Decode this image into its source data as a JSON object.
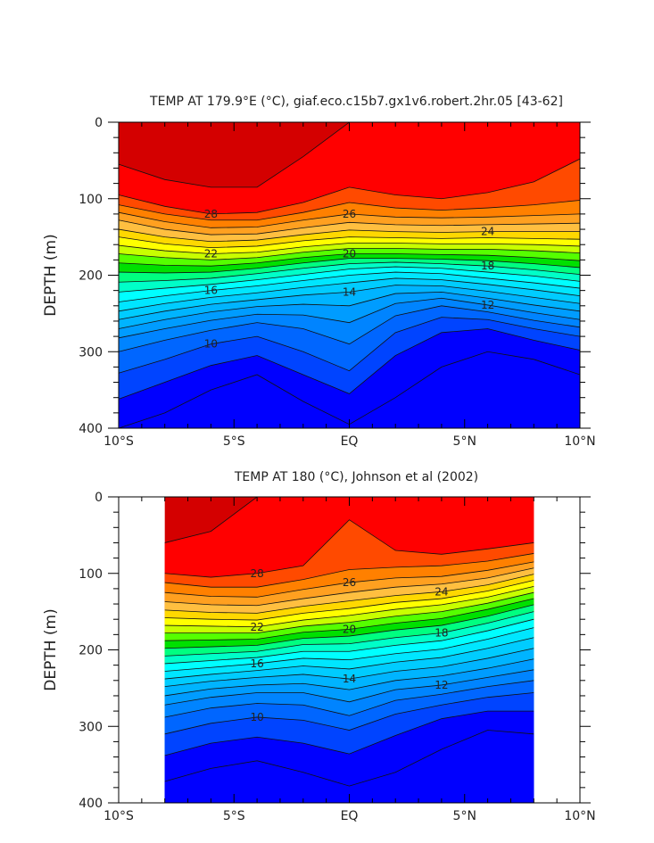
{
  "chart_data": [
    {
      "type": "heatmap",
      "title": "TEMP AT 179.9°E (°C), giaf.eco.c15b7.gx1v6.robert.2hr.05 [43-62]",
      "xlabel": "",
      "ylabel": "DEPTH (m)",
      "xlim": [
        -10,
        10
      ],
      "ylim": [
        400,
        0
      ],
      "x_ticks": [
        {
          "value": -10,
          "label": "10°S"
        },
        {
          "value": -5,
          "label": "5°S"
        },
        {
          "value": 0,
          "label": "EQ"
        },
        {
          "value": 5,
          "label": "5°N"
        },
        {
          "value": 10,
          "label": "10°N"
        }
      ],
      "y_ticks": [
        {
          "value": 0,
          "label": "0"
        },
        {
          "value": 100,
          "label": "100"
        },
        {
          "value": 200,
          "label": "200"
        },
        {
          "value": 300,
          "label": "300"
        },
        {
          "value": 400,
          "label": "400"
        }
      ],
      "data_x_range": [
        -10,
        10
      ],
      "contour_interval": 1,
      "levels": [
        29,
        28,
        27,
        26,
        25,
        24,
        23,
        22,
        21,
        20,
        19,
        18,
        17,
        16,
        15,
        14,
        13,
        12,
        11,
        10,
        9,
        8
      ],
      "contour_labels": [
        "28",
        "26",
        "24",
        "22",
        "20",
        "18",
        "16",
        "14",
        "12",
        "10"
      ],
      "x": [
        -10,
        -8,
        -6,
        -4,
        -2,
        0,
        2,
        4,
        6,
        8,
        10
      ],
      "isotherm_depths_m": {
        "29": [
          55,
          75,
          85,
          85,
          45,
          0,
          0,
          0,
          0,
          0,
          0
        ],
        "28": [
          95,
          110,
          120,
          118,
          105,
          85,
          95,
          100,
          92,
          78,
          48
        ],
        "27": [
          108,
          120,
          128,
          128,
          118,
          105,
          112,
          115,
          112,
          108,
          102
        ],
        "26": [
          118,
          130,
          138,
          137,
          128,
          120,
          124,
          125,
          124,
          122,
          120
        ],
        "25": [
          128,
          140,
          147,
          146,
          138,
          131,
          134,
          135,
          134,
          133,
          132
        ],
        "24": [
          140,
          150,
          156,
          154,
          147,
          141,
          143,
          144,
          143,
          143,
          143
        ],
        "23": [
          150,
          159,
          164,
          162,
          155,
          150,
          151,
          152,
          151,
          152,
          153
        ],
        "22": [
          161,
          168,
          172,
          170,
          163,
          158,
          158,
          159,
          159,
          160,
          162
        ],
        "21": [
          172,
          177,
          180,
          177,
          170,
          165,
          165,
          166,
          166,
          168,
          171
        ],
        "20": [
          184,
          187,
          188,
          184,
          177,
          172,
          172,
          173,
          174,
          177,
          181
        ],
        "19": [
          196,
          197,
          196,
          191,
          184,
          178,
          178,
          179,
          181,
          185,
          190
        ],
        "18": [
          209,
          207,
          204,
          198,
          191,
          185,
          183,
          185,
          188,
          193,
          199
        ],
        "17": [
          222,
          217,
          212,
          206,
          199,
          192,
          189,
          191,
          196,
          201,
          208
        ],
        "16": [
          235,
          227,
          220,
          214,
          207,
          200,
          196,
          198,
          204,
          210,
          217
        ],
        "15": [
          247,
          237,
          229,
          223,
          216,
          210,
          204,
          206,
          212,
          219,
          227
        ],
        "14": [
          258,
          247,
          238,
          232,
          226,
          222,
          213,
          214,
          221,
          229,
          237
        ],
        "13": [
          270,
          258,
          248,
          241,
          238,
          240,
          224,
          222,
          230,
          239,
          247
        ],
        "12": [
          282,
          270,
          259,
          251,
          252,
          262,
          237,
          230,
          239,
          249,
          258
        ],
        "11": [
          300,
          285,
          272,
          262,
          270,
          290,
          253,
          240,
          248,
          259,
          268
        ],
        "10": [
          328,
          310,
          290,
          280,
          300,
          325,
          275,
          255,
          258,
          270,
          280
        ],
        "9": [
          362,
          340,
          318,
          305,
          330,
          355,
          305,
          275,
          270,
          285,
          298
        ],
        "8": [
          400,
          380,
          350,
          330,
          365,
          395,
          360,
          320,
          300,
          310,
          330
        ]
      }
    },
    {
      "type": "heatmap",
      "title": "TEMP AT 180 (°C), Johnson et al (2002)",
      "xlabel": "",
      "ylabel": "DEPTH (m)",
      "xlim": [
        -10,
        10
      ],
      "ylim": [
        400,
        0
      ],
      "x_ticks": [
        {
          "value": -10,
          "label": "10°S"
        },
        {
          "value": -5,
          "label": "5°S"
        },
        {
          "value": 0,
          "label": "EQ"
        },
        {
          "value": 5,
          "label": "5°N"
        },
        {
          "value": 10,
          "label": "10°N"
        }
      ],
      "y_ticks": [
        {
          "value": 0,
          "label": "0"
        },
        {
          "value": 100,
          "label": "100"
        },
        {
          "value": 200,
          "label": "200"
        },
        {
          "value": 300,
          "label": "300"
        },
        {
          "value": 400,
          "label": "400"
        }
      ],
      "data_x_range": [
        -8,
        8
      ],
      "contour_interval": 1,
      "levels": [
        29,
        28,
        27,
        26,
        25,
        24,
        23,
        22,
        21,
        20,
        19,
        18,
        17,
        16,
        15,
        14,
        13,
        12,
        11,
        10,
        9,
        8
      ],
      "contour_labels": [
        "28",
        "26",
        "24",
        "22",
        "20",
        "18",
        "16",
        "14",
        "12",
        "10"
      ],
      "x": [
        -8,
        -6,
        -4,
        -2,
        0,
        2,
        4,
        6,
        8
      ],
      "isotherm_depths_m": {
        "29": [
          60,
          45,
          0,
          0,
          0,
          0,
          0,
          0,
          0
        ],
        "28": [
          100,
          105,
          100,
          90,
          30,
          70,
          75,
          68,
          60
        ],
        "27": [
          112,
          118,
          118,
          108,
          95,
          92,
          90,
          84,
          74
        ],
        "26": [
          125,
          130,
          131,
          121,
          112,
          106,
          104,
          96,
          85
        ],
        "25": [
          137,
          141,
          142,
          133,
          125,
          118,
          114,
          106,
          93
        ],
        "24": [
          148,
          151,
          152,
          143,
          136,
          129,
          124,
          115,
          101
        ],
        "23": [
          158,
          160,
          161,
          152,
          146,
          138,
          133,
          123,
          109
        ],
        "22": [
          168,
          169,
          170,
          161,
          155,
          147,
          141,
          131,
          117
        ],
        "21": [
          178,
          178,
          178,
          169,
          164,
          156,
          150,
          139,
          125
        ],
        "20": [
          188,
          187,
          186,
          177,
          173,
          165,
          159,
          147,
          133
        ],
        "19": [
          198,
          196,
          194,
          185,
          182,
          174,
          168,
          156,
          141
        ],
        "18": [
          208,
          205,
          202,
          193,
          192,
          184,
          178,
          165,
          150
        ],
        "17": [
          218,
          214,
          210,
          202,
          202,
          194,
          188,
          175,
          160
        ],
        "16": [
          228,
          223,
          218,
          211,
          213,
          205,
          199,
          186,
          171
        ],
        "15": [
          238,
          232,
          227,
          221,
          225,
          216,
          210,
          198,
          184
        ],
        "14": [
          248,
          241,
          236,
          232,
          238,
          228,
          222,
          211,
          198
        ],
        "13": [
          260,
          251,
          246,
          244,
          252,
          240,
          234,
          224,
          212
        ],
        "12": [
          272,
          262,
          256,
          256,
          268,
          252,
          246,
          236,
          226
        ],
        "11": [
          288,
          276,
          270,
          272,
          286,
          266,
          258,
          248,
          240
        ],
        "10": [
          310,
          296,
          288,
          292,
          305,
          284,
          272,
          262,
          256
        ],
        "9": [
          338,
          322,
          314,
          322,
          336,
          312,
          290,
          280,
          280
        ],
        "8": [
          372,
          355,
          345,
          360,
          378,
          360,
          330,
          305,
          310
        ]
      }
    }
  ]
}
